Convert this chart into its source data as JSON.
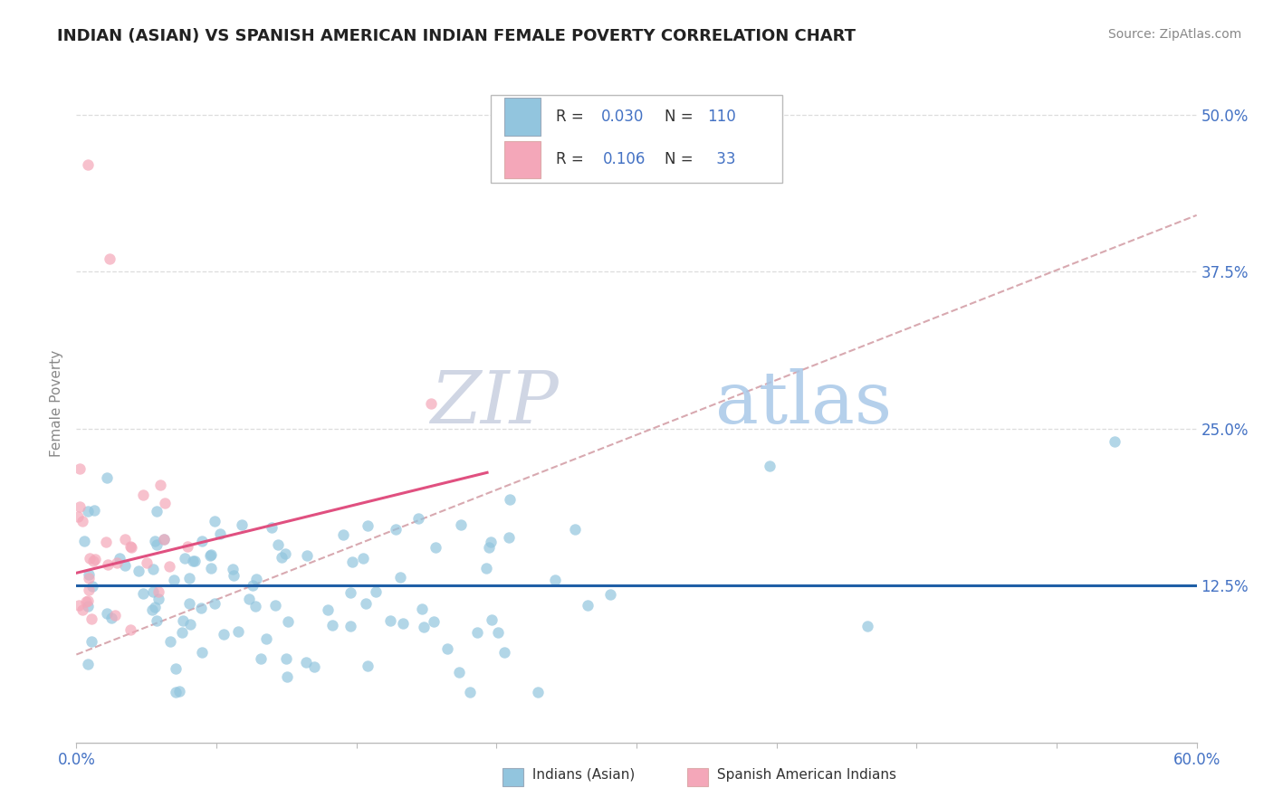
{
  "title": "INDIAN (ASIAN) VS SPANISH AMERICAN INDIAN FEMALE POVERTY CORRELATION CHART",
  "source": "Source: ZipAtlas.com",
  "ylabel": "Female Poverty",
  "xlim": [
    0.0,
    0.6
  ],
  "ylim": [
    0.0,
    0.54
  ],
  "xtick_positions": [
    0.0,
    0.075,
    0.15,
    0.225,
    0.3,
    0.375,
    0.45,
    0.525,
    0.6
  ],
  "yticks_right": [
    0.125,
    0.25,
    0.375,
    0.5
  ],
  "ytick_right_labels": [
    "12.5%",
    "25.0%",
    "37.5%",
    "50.0%"
  ],
  "blue_color": "#92c5de",
  "pink_color": "#f4a7b9",
  "blue_line_color": "#1f5fa6",
  "pink_line_color": "#e05080",
  "dashed_line_color": "#d4a0a8",
  "watermark_zip": "ZIP",
  "watermark_atlas": "atlas",
  "watermark_zip_color": "#c8cfe0",
  "watermark_atlas_color": "#a8c8e8"
}
